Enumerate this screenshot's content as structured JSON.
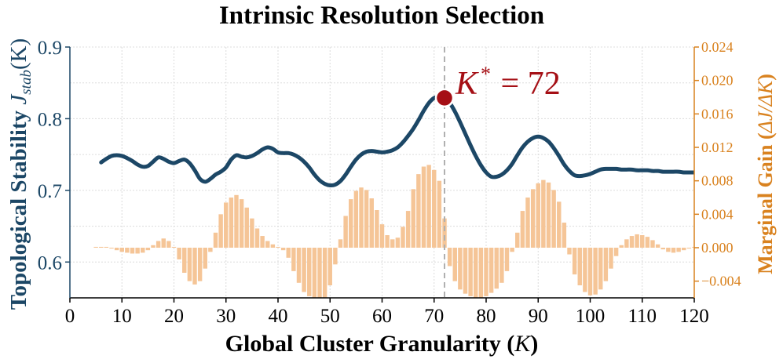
{
  "chart_data": {
    "type": "line",
    "title": "Intrinsic Resolution Selection",
    "xlabel_main": "Global Cluster Granularity (",
    "xlabel_var": "K",
    "xlabel_close": ")",
    "ylabel_left_main": "Topological Stability ",
    "ylabel_left_var": "J",
    "ylabel_left_sub": "stab",
    "ylabel_left_arg": "(K)",
    "ylabel_right_main": "Marginal Gain (",
    "ylabel_right_expr": "ΔJ/ΔK",
    "ylabel_right_close": ")",
    "annotation_k": "K",
    "annotation_star": "*",
    "annotation_rest": " = 72",
    "xlim": [
      0,
      120
    ],
    "ylim_left": [
      0.55,
      0.9
    ],
    "ylim_right": [
      -0.006,
      0.024
    ],
    "x_ticks": [
      0,
      10,
      20,
      30,
      40,
      50,
      60,
      70,
      80,
      90,
      100,
      110,
      120
    ],
    "y_left_ticks": [
      0.6,
      0.7,
      0.8,
      0.9
    ],
    "y_left_tick_labels": [
      "0.6",
      "0.7",
      "0.8",
      "0.9"
    ],
    "y_right_ticks": [
      -0.004,
      0.0,
      0.004,
      0.008,
      0.012,
      0.016,
      0.02,
      0.024
    ],
    "y_right_tick_labels": [
      "−0.004",
      "0.000",
      "0.004",
      "0.008",
      "0.012",
      "0.016",
      "0.020",
      "0.024"
    ],
    "optimum": {
      "x": 72,
      "y": 0.829
    },
    "colors": {
      "line": "#1c4766",
      "bars": "#f5c597",
      "right_axis": "#d9821f",
      "optimum": "#a50f15",
      "vline": "#b0b0b0",
      "grid": "#dcdcdc"
    },
    "grid": true,
    "stability_curve": {
      "x": [
        6,
        7,
        8,
        9,
        10,
        11,
        12,
        13,
        14,
        15,
        16,
        17,
        18,
        19,
        20,
        21,
        22,
        23,
        24,
        25,
        26,
        27,
        28,
        29,
        30,
        31,
        32,
        33,
        34,
        35,
        36,
        37,
        38,
        39,
        40,
        41,
        42,
        43,
        44,
        45,
        46,
        47,
        48,
        49,
        50,
        51,
        52,
        53,
        54,
        55,
        56,
        57,
        58,
        59,
        60,
        61,
        62,
        63,
        64,
        65,
        66,
        67,
        68,
        69,
        70,
        71,
        72,
        73,
        74,
        75,
        76,
        77,
        78,
        79,
        80,
        81,
        82,
        83,
        84,
        85,
        86,
        87,
        88,
        89,
        90,
        91,
        92,
        93,
        94,
        95,
        96,
        97,
        98,
        99,
        100,
        101,
        102,
        103,
        104,
        105,
        106,
        107,
        108,
        109,
        110,
        111,
        112,
        113,
        114,
        115,
        116,
        117,
        118,
        119,
        120
      ],
      "y": [
        0.739,
        0.744,
        0.748,
        0.749,
        0.748,
        0.745,
        0.741,
        0.736,
        0.733,
        0.734,
        0.74,
        0.746,
        0.744,
        0.74,
        0.738,
        0.741,
        0.743,
        0.738,
        0.728,
        0.716,
        0.712,
        0.716,
        0.722,
        0.726,
        0.732,
        0.743,
        0.749,
        0.747,
        0.746,
        0.748,
        0.752,
        0.757,
        0.76,
        0.758,
        0.753,
        0.752,
        0.752,
        0.75,
        0.746,
        0.74,
        0.732,
        0.722,
        0.714,
        0.709,
        0.707,
        0.708,
        0.713,
        0.722,
        0.733,
        0.743,
        0.75,
        0.754,
        0.755,
        0.754,
        0.753,
        0.754,
        0.756,
        0.76,
        0.767,
        0.776,
        0.786,
        0.798,
        0.811,
        0.822,
        0.829,
        0.83,
        0.829,
        0.822,
        0.81,
        0.795,
        0.779,
        0.763,
        0.748,
        0.735,
        0.725,
        0.719,
        0.719,
        0.722,
        0.728,
        0.737,
        0.749,
        0.76,
        0.768,
        0.773,
        0.775,
        0.773,
        0.768,
        0.759,
        0.748,
        0.736,
        0.727,
        0.721,
        0.72,
        0.721,
        0.723,
        0.726,
        0.729,
        0.73,
        0.73,
        0.73,
        0.729,
        0.729,
        0.729,
        0.728,
        0.728,
        0.728,
        0.727,
        0.727,
        0.726,
        0.726,
        0.726,
        0.726,
        0.725,
        0.725,
        0.725
      ]
    },
    "marginal_gain_bars": {
      "x": [
        5,
        6,
        7,
        8,
        9,
        10,
        11,
        12,
        13,
        14,
        15,
        16,
        17,
        18,
        19,
        20,
        21,
        22,
        23,
        24,
        25,
        26,
        27,
        28,
        29,
        30,
        31,
        32,
        33,
        34,
        35,
        36,
        37,
        38,
        39,
        40,
        41,
        42,
        43,
        44,
        45,
        46,
        47,
        48,
        49,
        50,
        51,
        52,
        53,
        54,
        55,
        56,
        57,
        58,
        59,
        60,
        61,
        62,
        63,
        64,
        65,
        66,
        67,
        68,
        69,
        70,
        71,
        72,
        73,
        74,
        75,
        76,
        77,
        78,
        79,
        80,
        81,
        82,
        83,
        84,
        85,
        86,
        87,
        88,
        89,
        90,
        91,
        92,
        93,
        94,
        95,
        96,
        97,
        98,
        99,
        100,
        101,
        102,
        103,
        104,
        105,
        106,
        107,
        108,
        109,
        110,
        111,
        112,
        113,
        114,
        115,
        116,
        117,
        118,
        119,
        120
      ],
      "y": [
        0.0001,
        0.0001,
        0.0001,
        -0.0001,
        -0.0003,
        -0.0005,
        -0.0006,
        -0.0007,
        -0.0007,
        -0.0006,
        -0.0003,
        0.0003,
        0.0008,
        0.0011,
        0.0008,
        0.0001,
        -0.0014,
        -0.003,
        -0.004,
        -0.0044,
        -0.004,
        -0.0025,
        -0.0005,
        0.0018,
        0.004,
        0.0054,
        0.006,
        0.0063,
        0.0058,
        0.0048,
        0.0035,
        0.0023,
        0.0014,
        0.0008,
        0.0004,
        0.0001,
        -0.0003,
        -0.0012,
        -0.0028,
        -0.0042,
        -0.0053,
        -0.0058,
        -0.0062,
        -0.0064,
        -0.006,
        -0.0045,
        -0.002,
        0.001,
        0.0038,
        0.0058,
        0.0068,
        0.0072,
        0.0069,
        0.0059,
        0.0045,
        0.0028,
        0.0015,
        0.001,
        0.0012,
        0.0025,
        0.0044,
        0.007,
        0.0088,
        0.0097,
        0.0099,
        0.0093,
        0.008,
        0.0035,
        -0.0022,
        -0.004,
        -0.005,
        -0.0055,
        -0.0058,
        -0.006,
        -0.006,
        -0.0058,
        -0.0054,
        -0.0049,
        -0.0042,
        -0.0028,
        -0.0005,
        0.0018,
        0.0044,
        0.006,
        0.007,
        0.0077,
        0.0081,
        0.0078,
        0.0069,
        0.0055,
        0.003,
        -0.0008,
        -0.0032,
        -0.0045,
        -0.0053,
        -0.0057,
        -0.0056,
        -0.005,
        -0.004,
        -0.0025,
        -0.001,
        0.0003,
        0.001,
        0.0014,
        0.0016,
        0.0015,
        0.0013,
        0.0009,
        0.0004,
        -0.0002,
        -0.0005,
        -0.0006,
        -0.0005,
        -0.0003,
        -0.0001,
        0.0001
      ]
    }
  }
}
